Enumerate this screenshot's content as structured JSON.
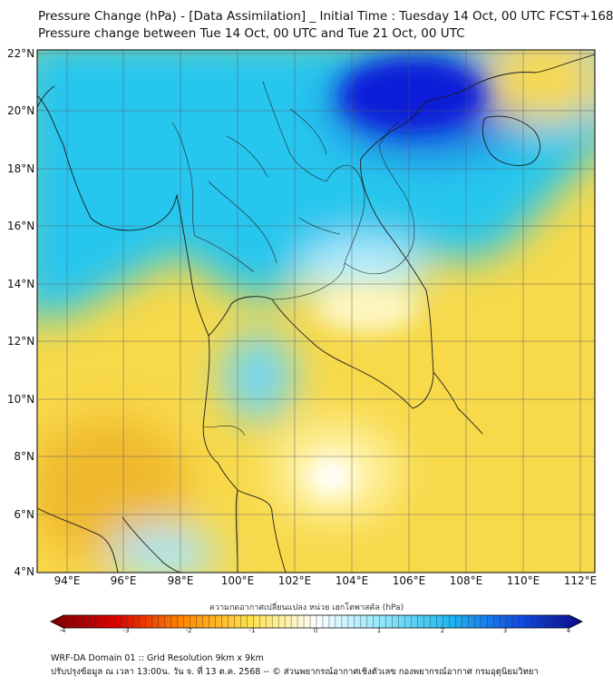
{
  "header": {
    "title_line1": "Pressure Change (hPa) - [Data Assimilation] _ Initial Time : Tuesday 14 Oct, 00 UTC FCST+168",
    "title_line2": "Pressure change between Tue 14 Oct, 00 UTC and Tue 21 Oct, 00 UTC"
  },
  "map": {
    "lat_labels": [
      "22°N",
      "20°N",
      "18°N",
      "16°N",
      "14°N",
      "12°N",
      "10°N",
      "8°N",
      "6°N",
      "4°N"
    ],
    "lon_labels": [
      "94°E",
      "96°E",
      "98°E",
      "100°E",
      "102°E",
      "104°E",
      "106°E",
      "108°E",
      "110°E",
      "112°E"
    ],
    "field_colors": {
      "strong_rise": "#0a1fd8",
      "rise": "#27c6ee",
      "slight_rise": "#bff0fb",
      "neutral": "#ffffff",
      "slight_fall": "#fff3a6",
      "fall": "#f8d94a",
      "strong_fall": "#f0b92e"
    }
  },
  "colorbar": {
    "title": "ความกดอากาศเปลี่ยนแปลง หน่วย เฮกโตพาสคัล (hPa)",
    "ticks": [
      "-4",
      "-3",
      "-2",
      "-1",
      "0",
      "1",
      "2",
      "3",
      "4"
    ],
    "colors": [
      "#7a0000",
      "#e00000",
      "#ff8a00",
      "#ffe14a",
      "#ffffff",
      "#8fe6fb",
      "#1fb8f0",
      "#1050e8",
      "#0a0a8a"
    ]
  },
  "footer": {
    "line1": "WRF-DA Domain 01 :: Grid Resolution 9km x 9km",
    "line2": "ปรับปรุงข้อมูล ณ เวลา 13:00น. วัน จ. ที่ 13 ต.ค. 2568 -- © ส่วนพยากรณ์อากาศเชิงตัวเลข กองพยากรณ์อากาศ กรมอุตุนิยมวิทยา"
  }
}
